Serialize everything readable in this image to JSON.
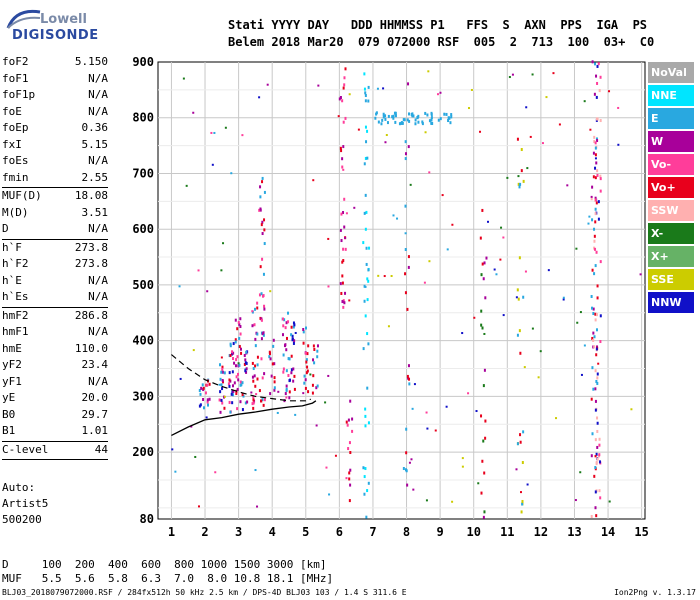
{
  "logo": {
    "line1": "Lowell",
    "line2": "DIGISONDE"
  },
  "header": {
    "line1": "Stati YYYY DAY   DDD HHMMSS P1   FFS  S  AXN  PPS  IGA  PS",
    "line2": "Belem 2018 Mar20  079 072000 RSF  005  2  713  100  03+  C0"
  },
  "params": [
    {
      "label": "foF2",
      "value": "5.150"
    },
    {
      "label": "foF1",
      "value": "N/A"
    },
    {
      "label": "foF1p",
      "value": "N/A"
    },
    {
      "label": "foE",
      "value": "N/A"
    },
    {
      "label": "foEp",
      "value": "0.36"
    },
    {
      "label": "fxI",
      "value": "5.15"
    },
    {
      "label": "foEs",
      "value": "N/A"
    },
    {
      "label": "fmin",
      "value": "2.55",
      "sep": true
    },
    {
      "label": "MUF(D)",
      "value": "18.08"
    },
    {
      "label": "M(D)",
      "value": "3.51"
    },
    {
      "label": "D",
      "value": "N/A",
      "sep": true
    },
    {
      "label": "h`F",
      "value": "273.8"
    },
    {
      "label": "h`F2",
      "value": "273.8"
    },
    {
      "label": "h`E",
      "value": "N/A"
    },
    {
      "label": "h`Es",
      "value": "N/A",
      "sep": true
    },
    {
      "label": "hmF2",
      "value": "286.8"
    },
    {
      "label": "hmF1",
      "value": "N/A"
    },
    {
      "label": "hmE",
      "value": "110.0"
    },
    {
      "label": "yF2",
      "value": "23.4"
    },
    {
      "label": "yF1",
      "value": "N/A"
    },
    {
      "label": "yE",
      "value": "20.0"
    },
    {
      "label": "B0",
      "value": "29.7"
    },
    {
      "label": "B1",
      "value": "1.01",
      "sep": true
    },
    {
      "label": "C-level",
      "value": "44",
      "sep": true
    }
  ],
  "auto": [
    "Auto:",
    "Artist5",
    "500200"
  ],
  "legend": [
    {
      "label": "NoVal",
      "color": "#a9a9a9"
    },
    {
      "label": "NNE",
      "color": "#00e5ff"
    },
    {
      "label": "E",
      "color": "#29a8e0"
    },
    {
      "label": "W",
      "color": "#a8009a"
    },
    {
      "label": "Vo-",
      "color": "#ff3d9a"
    },
    {
      "label": "Vo+",
      "color": "#e8001c"
    },
    {
      "label": "SSW",
      "color": "#ffb0b0"
    },
    {
      "label": "X-",
      "color": "#1a7a1a"
    },
    {
      "label": "X+",
      "color": "#66b266"
    },
    {
      "label": "SSE",
      "color": "#cccc00"
    },
    {
      "label": "NNW",
      "color": "#1010c8"
    }
  ],
  "dmuf": {
    "d_line": "D     100  200  400  600  800 1000 1500 3000 [km]",
    "muf_line": "MUF   5.5  5.6  5.8  6.3  7.0  8.0 10.8 18.1 [MHz]"
  },
  "footer": {
    "left": "BLJ03_2018079072000.RSF / 284fx512h 50 kHz 2.5 km / DPS-4D BLJ03 103 / 1.4 S 311.6 E",
    "right": "Ion2Png v. 1.3.17"
  },
  "chart_data": {
    "type": "scatter",
    "xlim": [
      1,
      15
    ],
    "ylim": [
      80,
      900
    ],
    "x_ticks": [
      1,
      2,
      3,
      4,
      5,
      6,
      7,
      8,
      9,
      10,
      11,
      12,
      13,
      14,
      15
    ],
    "y_ticks": [
      80,
      200,
      300,
      400,
      500,
      600,
      700,
      800,
      900
    ],
    "grid": true,
    "traces": {
      "solid": {
        "x": [
          1.0,
          1.5,
          2.0,
          2.5,
          3.0,
          3.5,
          4.0,
          4.5,
          4.9,
          5.2,
          5.3
        ],
        "y": [
          230,
          245,
          258,
          262,
          268,
          272,
          277,
          281,
          283,
          288,
          292
        ]
      },
      "dashed": {
        "x": [
          1.0,
          1.5,
          2.0,
          2.5,
          3.0,
          3.5,
          4.0,
          4.5,
          5.0,
          5.15
        ],
        "y": [
          375,
          350,
          330,
          318,
          308,
          300,
          296,
          292,
          292,
          295
        ]
      }
    },
    "echo_columns": [
      {
        "x": 1.9,
        "ymin": 270,
        "ymax": 320,
        "density": 10,
        "colors": [
          "#e8001c",
          "#a8009a",
          "#29a8e0",
          "#1010c8"
        ]
      },
      {
        "x": 2.1,
        "ymin": 270,
        "ymax": 330,
        "density": 10,
        "colors": [
          "#e8001c",
          "#a8009a",
          "#ff3d9a",
          "#29a8e0"
        ]
      },
      {
        "x": 2.5,
        "ymin": 270,
        "ymax": 360,
        "density": 18,
        "colors": [
          "#e8001c",
          "#a8009a",
          "#29a8e0",
          "#ff3d9a",
          "#1010c8"
        ]
      },
      {
        "x": 2.8,
        "ymin": 270,
        "ymax": 420,
        "density": 26,
        "colors": [
          "#e8001c",
          "#a8009a",
          "#29a8e0",
          "#ff3d9a",
          "#1010c8"
        ]
      },
      {
        "x": 3.0,
        "ymin": 270,
        "ymax": 440,
        "density": 30,
        "colors": [
          "#e8001c",
          "#a8009a",
          "#29a8e0",
          "#ff3d9a"
        ]
      },
      {
        "x": 3.2,
        "ymin": 275,
        "ymax": 380,
        "density": 18,
        "colors": [
          "#e8001c",
          "#a8009a",
          "#29a8e0",
          "#1010c8"
        ]
      },
      {
        "x": 3.5,
        "ymin": 275,
        "ymax": 470,
        "density": 26,
        "colors": [
          "#e8001c",
          "#a8009a",
          "#29a8e0",
          "#ff3d9a"
        ]
      },
      {
        "x": 3.7,
        "ymin": 280,
        "ymax": 700,
        "density": 40,
        "colors": [
          "#a8009a",
          "#e8001c",
          "#ff3d9a",
          "#29a8e0"
        ]
      },
      {
        "x": 4.0,
        "ymin": 285,
        "ymax": 400,
        "density": 14,
        "colors": [
          "#a8009a",
          "#e8001c",
          "#29a8e0"
        ]
      },
      {
        "x": 4.4,
        "ymin": 290,
        "ymax": 450,
        "density": 24,
        "colors": [
          "#e8001c",
          "#a8009a",
          "#ff3d9a",
          "#29a8e0"
        ]
      },
      {
        "x": 4.6,
        "ymin": 295,
        "ymax": 440,
        "density": 22,
        "colors": [
          "#e8001c",
          "#a8009a",
          "#29a8e0",
          "#1010c8"
        ]
      },
      {
        "x": 5.0,
        "ymin": 300,
        "ymax": 430,
        "density": 18,
        "colors": [
          "#e8001c",
          "#a8009a",
          "#29a8e0",
          "#ff3d9a"
        ]
      },
      {
        "x": 5.3,
        "ymin": 305,
        "ymax": 420,
        "density": 12,
        "colors": [
          "#e8001c",
          "#a8009a",
          "#29a8e0"
        ]
      },
      {
        "x": 6.1,
        "ymin": 450,
        "ymax": 900,
        "density": 34,
        "colors": [
          "#a8009a",
          "#e8001c",
          "#ff3d9a"
        ]
      },
      {
        "x": 6.3,
        "ymin": 80,
        "ymax": 300,
        "density": 14,
        "colors": [
          "#a8009a",
          "#e8001c",
          "#ff3d9a"
        ]
      },
      {
        "x": 6.8,
        "ymin": 80,
        "ymax": 900,
        "density": 44,
        "colors": [
          "#29a8e0",
          "#00e5ff"
        ]
      },
      {
        "x": 8.0,
        "ymin": 100,
        "ymax": 900,
        "density": 24,
        "colors": [
          "#29a8e0",
          "#a8009a",
          "#e8001c"
        ]
      },
      {
        "x": 10.3,
        "ymin": 80,
        "ymax": 650,
        "density": 22,
        "colors": [
          "#a8009a",
          "#e8001c",
          "#1a7a1a"
        ]
      },
      {
        "x": 11.4,
        "ymin": 80,
        "ymax": 800,
        "density": 24,
        "colors": [
          "#cccc00",
          "#e8001c",
          "#29a8e0"
        ]
      },
      {
        "x": 13.6,
        "ymin": 80,
        "ymax": 900,
        "density": 70,
        "colors": [
          "#ffb0b0",
          "#e8001c",
          "#29a8e0",
          "#a8009a"
        ]
      },
      {
        "x": 13.7,
        "ymin": 80,
        "ymax": 900,
        "density": 50,
        "colors": [
          "#ffb0b0",
          "#ff3d9a",
          "#1010c8"
        ]
      }
    ],
    "echo_band": {
      "xmin": 7.0,
      "xmax": 9.4,
      "ymin": 790,
      "ymax": 810,
      "density": 60,
      "color": "#29a8e0"
    },
    "scatter_noise": {
      "count": 160,
      "xmin": 1.0,
      "xmax": 15.0,
      "ymin": 100,
      "ymax": 890,
      "colors": [
        "#a8009a",
        "#e8001c",
        "#29a8e0",
        "#1010c8",
        "#cccc00",
        "#1a7a1a",
        "#ff3d9a"
      ]
    }
  }
}
